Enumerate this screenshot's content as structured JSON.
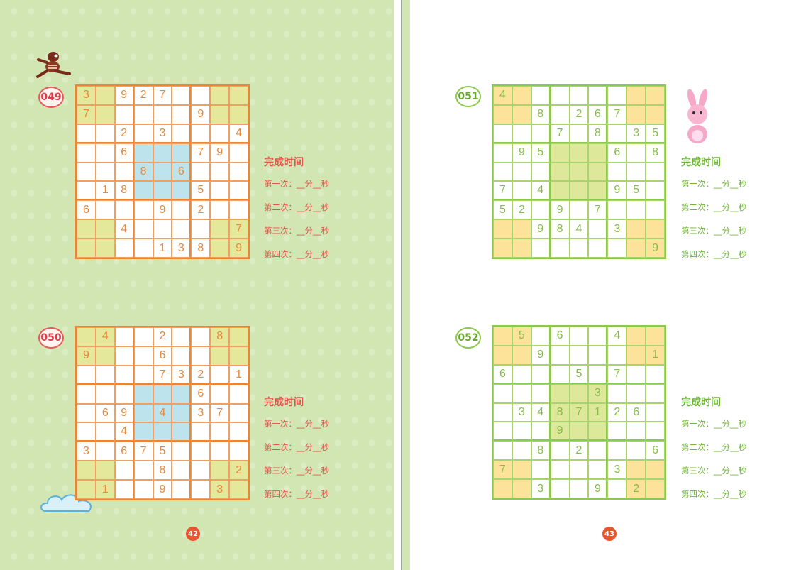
{
  "left_page": {
    "page_number": "42"
  },
  "right_page": {
    "page_number": "43"
  },
  "colors": {
    "orange_grid": "#ef8530",
    "green_grid": "#8cc84b",
    "red_text": "#e8504a",
    "green_text": "#6cb434",
    "page_bg": "#d2e6b4"
  },
  "puzzles": [
    {
      "label": "049",
      "theme": "orange",
      "grid": [
        "3.927....",
        "7.....9..",
        "..2.3...4",
        "..6...79.",
        "...8.6...",
        ".18...5..",
        "6...9.2..",
        "..4.....7",
        "....138.9"
      ],
      "timer": {
        "title": "完成时间",
        "rows": [
          "第一次：__分__秒",
          "第二次：__分__秒",
          "第三次：__分__秒",
          "第四次：__分__秒"
        ]
      }
    },
    {
      "label": "050",
      "theme": "orange",
      "grid": [
        ".4..2..8.",
        "9...6....",
        "....732.1",
        "......6..",
        ".69.4.37.",
        "..4......",
        "3.675....",
        "....8...2",
        ".1..9..3."
      ],
      "timer": {
        "title": "完成时间",
        "rows": [
          "第一次：__分__秒",
          "第二次：__分__秒",
          "第三次：__分__秒",
          "第四次：__分__秒"
        ]
      }
    },
    {
      "label": "051",
      "theme": "green",
      "grid": [
        "4........",
        "..8.267..",
        "...7.8.35",
        ".95...6.8",
        ".........",
        "7.4...95.",
        "52.9.7...",
        "..984.3..",
        "........9"
      ],
      "timer": {
        "title": "完成时间",
        "rows": [
          "第一次：__分__秒",
          "第二次：__分__秒",
          "第三次：__分__秒",
          "第四次：__分__秒"
        ]
      }
    },
    {
      "label": "052",
      "theme": "green",
      "grid": [
        ".5.6..4..",
        "..9.....1",
        "6...5.7..",
        ".....3...",
        ".3487126.",
        "...9.....",
        "..8.2...6",
        "7.....3..",
        "..3..9.2."
      ],
      "timer": {
        "title": "完成时间",
        "rows": [
          "第一次：__分__秒",
          "第二次：__分__秒",
          "第三次：__分__秒",
          "第四次：__分__秒"
        ]
      }
    }
  ]
}
